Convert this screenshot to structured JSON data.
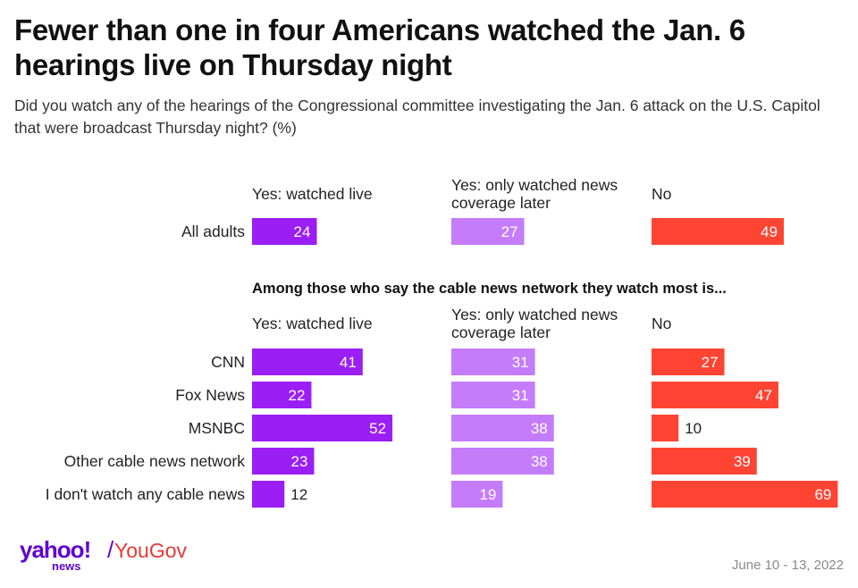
{
  "title": "Fewer than one in four Americans watched the Jan. 6 hearings live on Thursday night",
  "subtitle": "Did you watch any of the hearings of the Congressional committee investigating the Jan. 6 attack on the U.S. Capitol that were broadcast Thursday night? (%)",
  "columns": {
    "live": "Yes: watched live",
    "later_line1": "Yes: only watched news",
    "later_line2": "coverage later",
    "no": "No"
  },
  "section_heading": "Among those who say the cable news network they watch most is...",
  "footer": {
    "logo_yahoo": "yahoo!",
    "logo_news": "news",
    "logo_slash": "/",
    "logo_yougov": "YouGov",
    "date": "June 10 - 13, 2022"
  },
  "colors": {
    "live": "#9b1ef5",
    "later": "#c57cfa",
    "no": "#ff4433"
  },
  "chart_data": {
    "type": "bar",
    "orientation": "horizontal",
    "series": [
      {
        "name": "Yes: watched live"
      },
      {
        "name": "Yes: only watched news coverage later"
      },
      {
        "name": "No"
      }
    ],
    "groups": [
      {
        "rows": [
          {
            "label": "All adults",
            "values": [
              24,
              27,
              49
            ]
          }
        ]
      },
      {
        "rows": [
          {
            "label": "CNN",
            "values": [
              41,
              31,
              27
            ]
          },
          {
            "label": "Fox News",
            "values": [
              22,
              31,
              47
            ]
          },
          {
            "label": "MSNBC",
            "values": [
              52,
              38,
              10
            ]
          },
          {
            "label": "Other cable news network",
            "values": [
              23,
              38,
              39
            ]
          },
          {
            "label": "I don't watch any cable news",
            "values": [
              12,
              19,
              69
            ]
          }
        ]
      }
    ]
  }
}
